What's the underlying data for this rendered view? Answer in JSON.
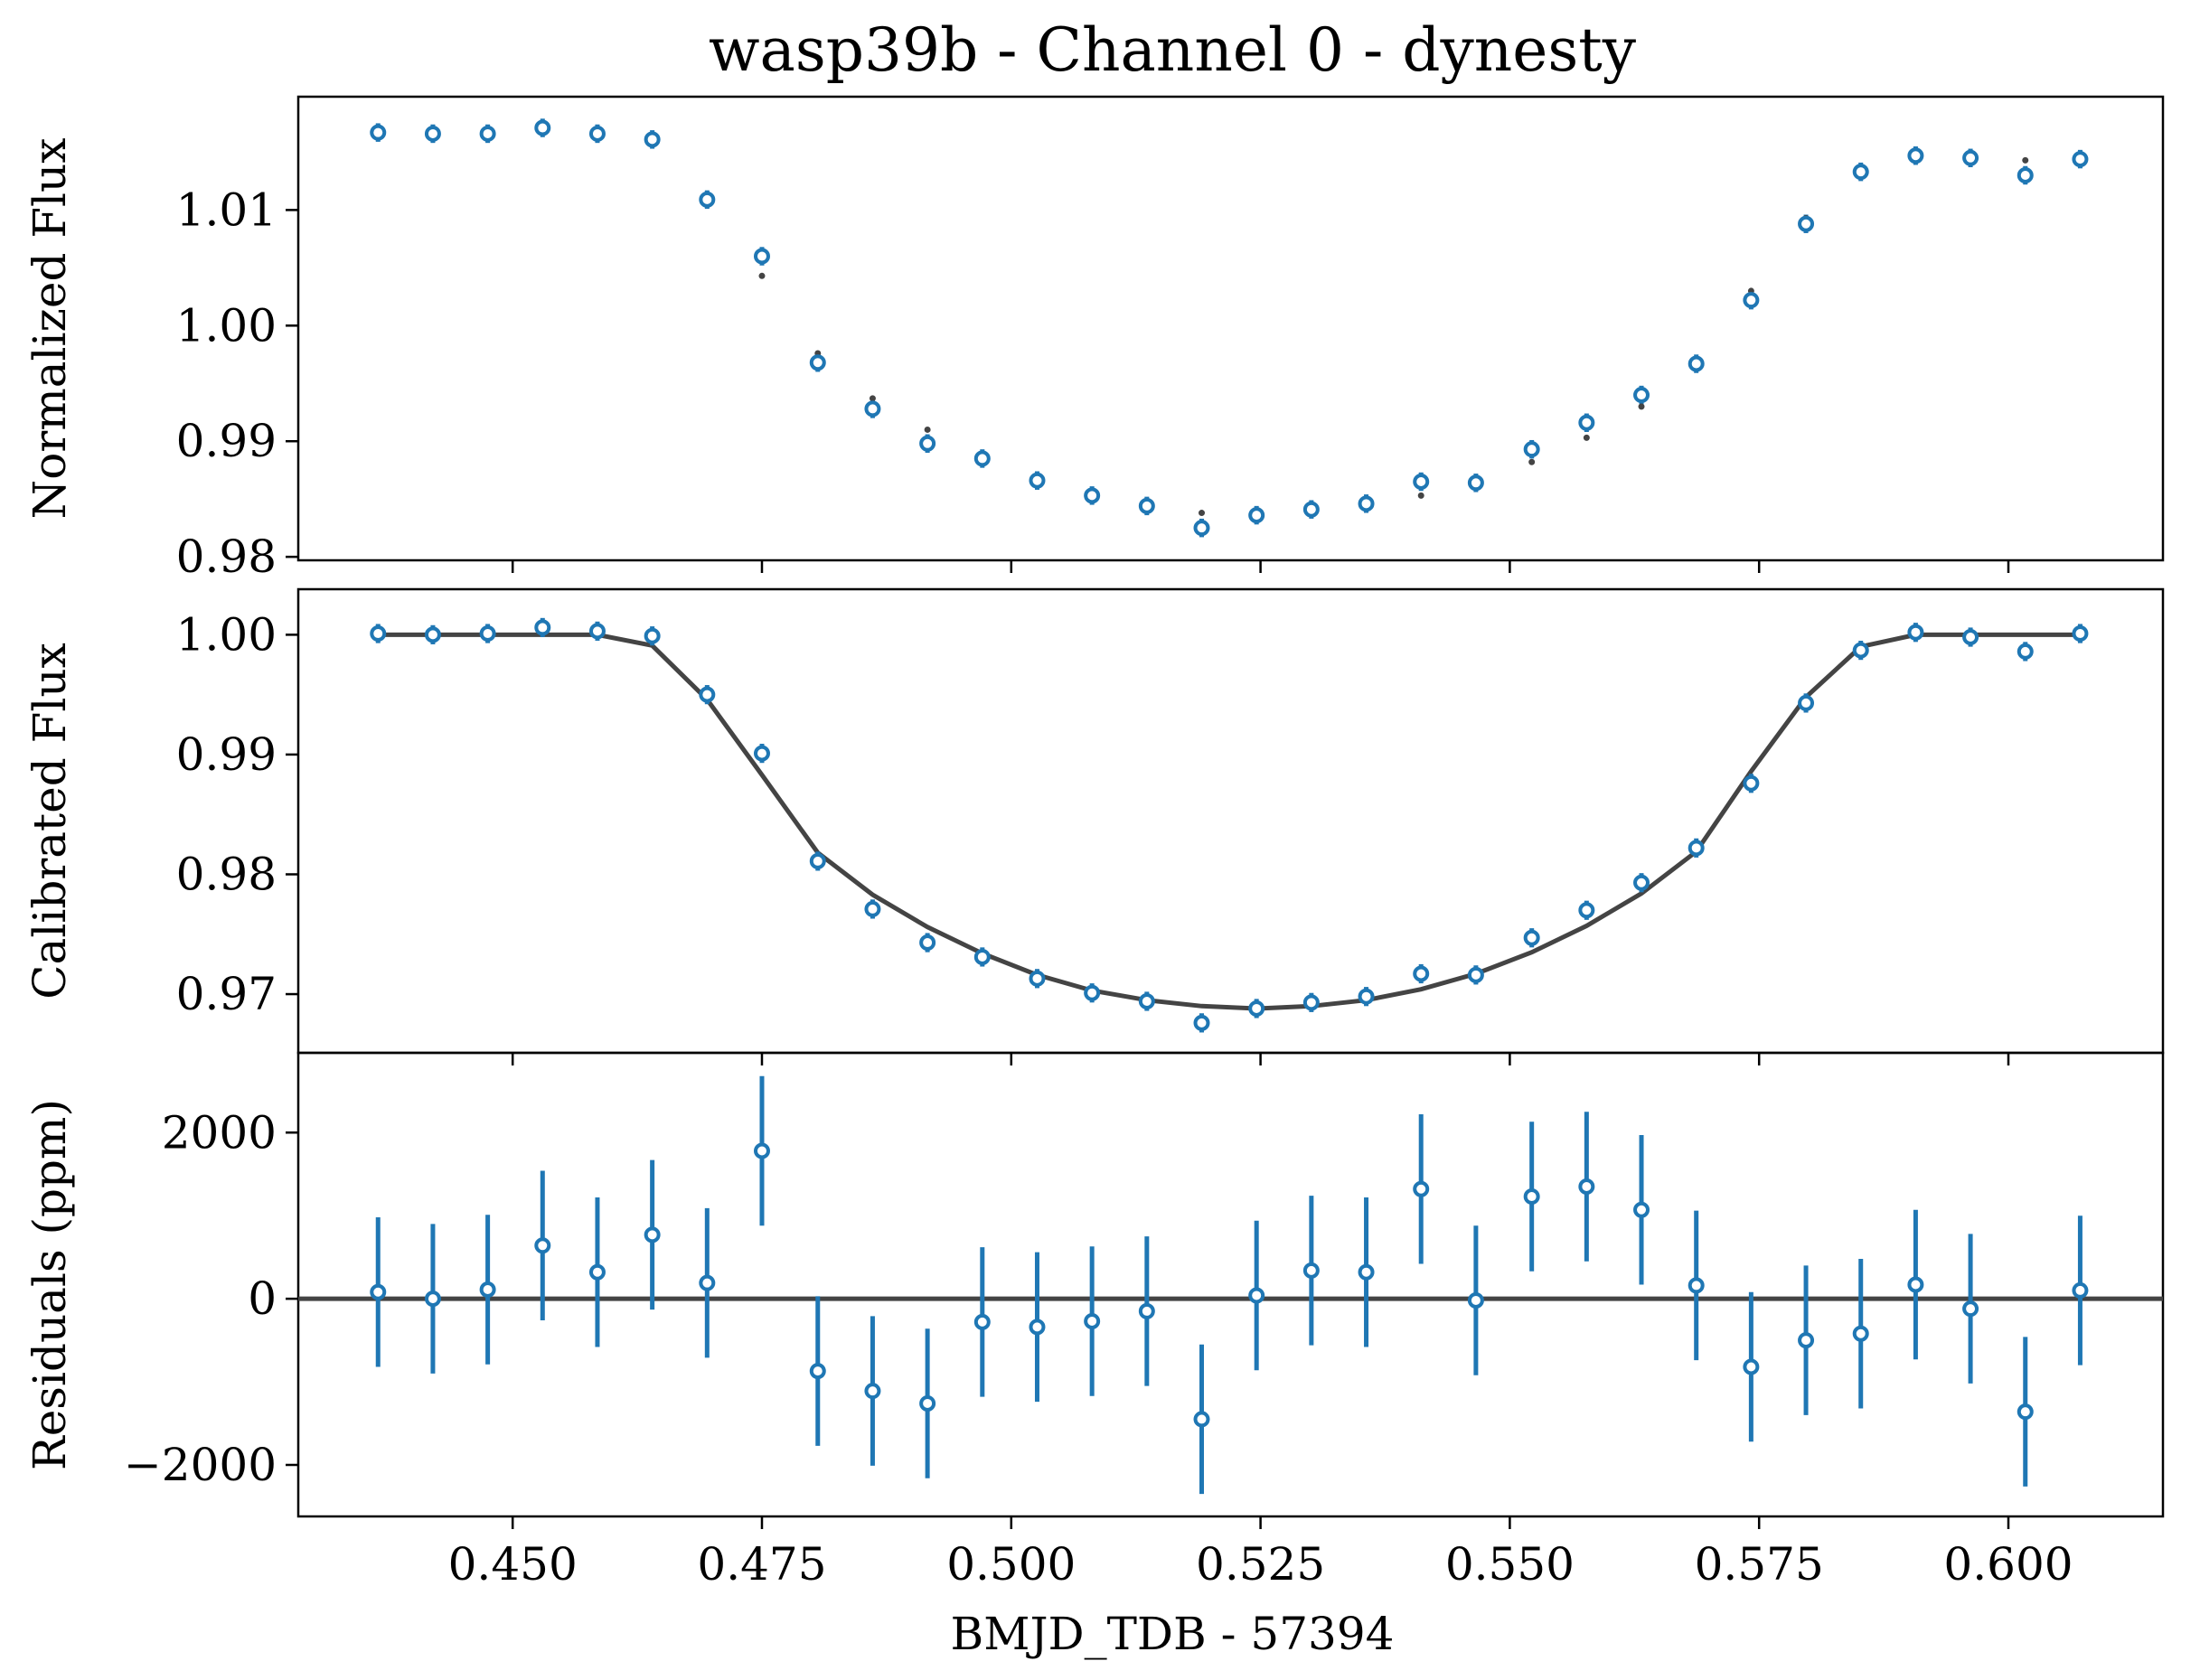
{
  "colors": {
    "data": "#1f77b4",
    "model": "#444444"
  },
  "chart_data": {
    "type": "scatter",
    "title": "wasp39b - Channel 0 - dynesty",
    "xlabel": "BMJD_TDB - 57394",
    "xlim": [
      0.4285,
      0.6155
    ],
    "xticks": [
      "0.450",
      "0.475",
      "0.500",
      "0.525",
      "0.550",
      "0.575",
      "0.600"
    ],
    "xtick_values": [
      0.45,
      0.475,
      0.5,
      0.525,
      0.55,
      0.575,
      0.6
    ],
    "x": [
      0.4365,
      0.442,
      0.4475,
      0.453,
      0.4585,
      0.464,
      0.4695,
      0.475,
      0.4806,
      0.4861,
      0.4916,
      0.4971,
      0.5026,
      0.5081,
      0.5136,
      0.5191,
      0.5246,
      0.5301,
      0.5356,
      0.5411,
      0.5466,
      0.5522,
      0.5577,
      0.5632,
      0.5687,
      0.5742,
      0.5797,
      0.5852,
      0.5907,
      0.5962,
      0.6017,
      0.6072
    ],
    "panels": [
      {
        "id": "normalized",
        "ylabel": "Normalized Flux",
        "ylim": [
          0.9797,
          1.0198
        ],
        "yticks": [
          "0.98",
          "0.99",
          "1.00",
          "1.01"
        ],
        "ytick_values": [
          0.98,
          0.99,
          1.0,
          1.01
        ],
        "y": [
          1.0167,
          1.0166,
          1.0166,
          1.0171,
          1.0166,
          1.0161,
          1.0109,
          1.006,
          0.9968,
          0.9928,
          0.9898,
          0.9885,
          0.9866,
          0.9853,
          0.9844,
          0.9825,
          0.9836,
          0.9841,
          0.9846,
          0.9865,
          0.9864,
          0.9893,
          0.9916,
          0.994,
          0.9967,
          1.0022,
          1.0088,
          1.0133,
          1.0147,
          1.0145,
          1.013,
          1.0144
        ],
        "yerr": [
          0.0008,
          0.0008,
          0.0008,
          0.0008,
          0.0008,
          0.0008,
          0.0008,
          0.0008,
          0.0008,
          0.0008,
          0.0008,
          0.0008,
          0.0008,
          0.0008,
          0.0008,
          0.0008,
          0.0008,
          0.0008,
          0.0008,
          0.0008,
          0.0008,
          0.0008,
          0.0008,
          0.0008,
          0.0008,
          0.0008,
          0.0008,
          0.0008,
          0.0008,
          0.0008,
          0.0008,
          0.0008
        ],
        "model": [
          1.0167,
          1.0165,
          1.0167,
          1.0168,
          1.0166,
          1.0163,
          1.011,
          1.0043,
          0.9976,
          0.9937,
          0.991,
          0.9886,
          0.9866,
          0.9852,
          0.9845,
          0.9838,
          0.9836,
          0.984,
          0.9845,
          0.9853,
          0.9867,
          0.9882,
          0.9903,
          0.993,
          0.9964,
          1.003,
          1.0093,
          1.0131,
          1.0143,
          1.0142,
          1.0143,
          1.0143
        ]
      },
      {
        "id": "calibrated",
        "ylabel": "Calibrated Flux",
        "ylim": [
          0.9651,
          1.0038
        ],
        "yticks": [
          "0.97",
          "0.98",
          "0.99",
          "1.00"
        ],
        "ytick_values": [
          0.97,
          0.98,
          0.99,
          1.0
        ],
        "y": [
          1.0001,
          1.0,
          1.0001,
          1.0006,
          1.0003,
          0.9999,
          0.995,
          0.9901,
          0.9811,
          0.9771,
          0.9743,
          0.9731,
          0.9713,
          0.9701,
          0.9694,
          0.9676,
          0.9688,
          0.9693,
          0.9698,
          0.9717,
          0.9716,
          0.9747,
          0.977,
          0.9793,
          0.9822,
          0.9876,
          0.9943,
          0.9987,
          1.0002,
          0.9998,
          0.9986,
          1.0001
        ],
        "yerr": [
          0.0008,
          0.0008,
          0.0008,
          0.0008,
          0.0008,
          0.0008,
          0.0008,
          0.0008,
          0.0008,
          0.0008,
          0.0008,
          0.0008,
          0.0008,
          0.0008,
          0.0008,
          0.0008,
          0.0008,
          0.0008,
          0.0008,
          0.0008,
          0.0008,
          0.0008,
          0.0008,
          0.0008,
          0.0008,
          0.0008,
          0.0008,
          0.0008,
          0.0008,
          0.0008,
          0.0008,
          0.0008
        ],
        "model": [
          1.0,
          1.0,
          1.0,
          1.0,
          1.0,
          0.9991,
          0.9946,
          0.9883,
          0.9818,
          0.9783,
          0.9756,
          0.9734,
          0.9716,
          0.9703,
          0.9695,
          0.969,
          0.9688,
          0.969,
          0.9695,
          0.9704,
          0.9717,
          0.9735,
          0.9757,
          0.9784,
          0.9819,
          0.9886,
          0.9948,
          0.999,
          1.0,
          1.0,
          1.0,
          1.0
        ]
      },
      {
        "id": "residuals",
        "ylabel": "Residuals (ppm)",
        "ylim": [
          -2620,
          2960
        ],
        "yticks": [
          "−2000",
          "0",
          "2000"
        ],
        "ytick_values": [
          -2000,
          0,
          2000
        ],
        "y": [
          80,
          0,
          110,
          640,
          320,
          770,
          190,
          1780,
          -870,
          -1110,
          -1260,
          -280,
          -340,
          -270,
          -150,
          -1450,
          40,
          340,
          320,
          1320,
          -20,
          1230,
          1350,
          1070,
          160,
          -820,
          -500,
          -420,
          170,
          -120,
          -1360,
          100
        ],
        "yerr": [
          900,
          900,
          900,
          900,
          900,
          900,
          900,
          900,
          900,
          900,
          900,
          900,
          900,
          900,
          900,
          900,
          900,
          900,
          900,
          900,
          900,
          900,
          900,
          900,
          900,
          900,
          900,
          900,
          900,
          900,
          900,
          900
        ],
        "model_constant": 0
      }
    ]
  }
}
